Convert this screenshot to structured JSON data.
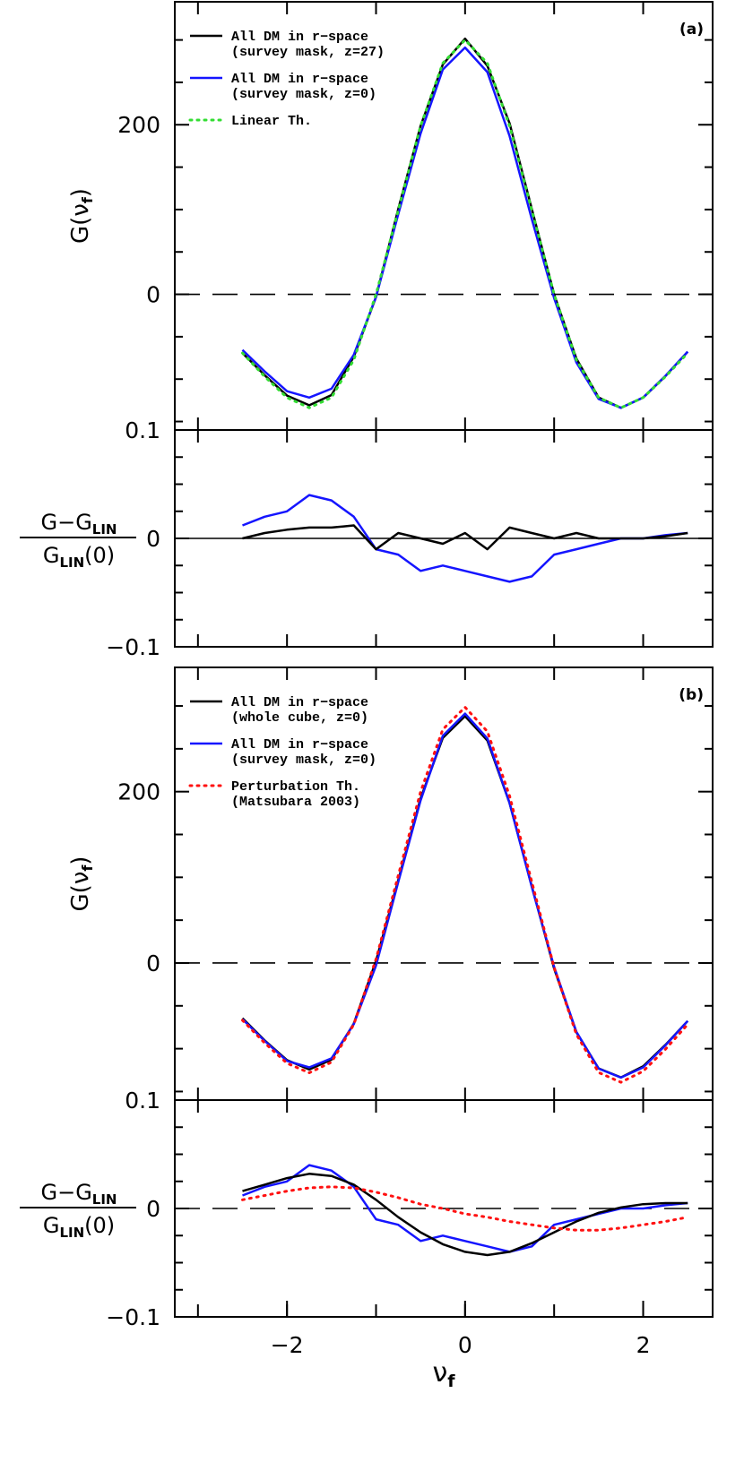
{
  "chart_data": [
    {
      "type": "line",
      "annotation": "(a)",
      "ylabel": [
        "G(ν",
        "f",
        ")"
      ],
      "xlim": [
        -3.26,
        2.78
      ],
      "xticks_minor": [
        -3,
        -2,
        -1,
        0,
        1,
        2
      ],
      "ylim": [
        -160,
        345
      ],
      "yticks": [
        0,
        200
      ],
      "yticks_minor": [
        -150,
        -100,
        -50,
        50,
        100,
        150,
        250,
        300
      ],
      "reference_line": 0,
      "reference_style": "dashed",
      "legend": "upper left",
      "x": [
        -2.5,
        -2.25,
        -2.0,
        -1.75,
        -1.5,
        -1.25,
        -1.0,
        -0.75,
        -0.5,
        -0.25,
        0,
        0.25,
        0.5,
        0.75,
        1.0,
        1.25,
        1.5,
        1.75,
        2.0,
        2.25,
        2.5
      ],
      "series": [
        {
          "name": [
            "All DM in r−space",
            "(survey mask, z=27)"
          ],
          "color": "#000000",
          "style": "solid",
          "values": [
            -69.2,
            -95.5,
            -119.4,
            -130.8,
            -118.8,
            -73.7,
            -3,
            100.6,
            198.6,
            271.1,
            301.5,
            269.6,
            201.6,
            100.6,
            0,
            -75.8,
            -121.8,
            -133.8,
            -121.8,
            -96.4,
            -67.7
          ]
        },
        {
          "name": [
            "All DM in r−space",
            "(survey mask, z=0)"
          ],
          "color": "#1515ff",
          "style": "solid",
          "values": [
            -65.6,
            -91.0,
            -114.3,
            -121.8,
            -111.3,
            -71.3,
            -3,
            94.6,
            189.6,
            265.1,
            291,
            262.1,
            186.6,
            88.6,
            -4.5,
            -80.3,
            -123.3,
            -133.8,
            -121.8,
            -96.1,
            -67.7
          ]
        },
        {
          "name": [
            "Linear Th."
          ],
          "color": "#33dd33",
          "style": "dotted",
          "values": [
            -69.2,
            -97.0,
            -121.8,
            -133.8,
            -121.8,
            -77.3,
            0,
            99.1,
            198.6,
            272.6,
            300,
            272.6,
            198.6,
            99.1,
            0,
            -77.3,
            -121.8,
            -133.8,
            -121.8,
            -97.0,
            -69.2
          ]
        }
      ]
    },
    {
      "type": "line",
      "ylabel_numerator": [
        "G−G",
        "LIN"
      ],
      "ylabel_denominator": [
        "G",
        "LIN",
        "(0)"
      ],
      "xlim": [
        -3.26,
        2.78
      ],
      "xticks_minor": [
        -3,
        -2,
        -1,
        0,
        1,
        2
      ],
      "ylim": [
        -0.1,
        0.1
      ],
      "yticks": [
        {
          "value": -0.1,
          "label": "−0.1"
        },
        0,
        0.1
      ],
      "yticks_minor": [
        -0.075,
        -0.05,
        -0.025,
        0.025,
        0.05,
        0.075
      ],
      "reference_line": 0,
      "reference_style": "solid",
      "x": [
        -2.5,
        -2.25,
        -2.0,
        -1.75,
        -1.5,
        -1.25,
        -1.0,
        -0.75,
        -0.5,
        -0.25,
        0,
        0.25,
        0.5,
        0.75,
        1.0,
        1.25,
        1.5,
        1.75,
        2.0,
        2.25,
        2.5
      ],
      "series": [
        {
          "color": "#1515ff",
          "style": "solid",
          "values": [
            0.012,
            0.02,
            0.025,
            0.04,
            0.035,
            0.02,
            -0.01,
            -0.015,
            -0.03,
            -0.025,
            -0.03,
            -0.035,
            -0.04,
            -0.035,
            -0.015,
            -0.01,
            -0.005,
            0.0,
            0.0,
            0.003,
            0.005
          ]
        },
        {
          "color": "#000000",
          "style": "solid",
          "values": [
            0,
            0.005,
            0.008,
            0.01,
            0.01,
            0.012,
            -0.01,
            0.005,
            0.0,
            -0.005,
            0.005,
            -0.01,
            0.01,
            0.005,
            0,
            0.005,
            0.0,
            0.0,
            0.0,
            0.002,
            0.005
          ]
        }
      ]
    },
    {
      "type": "line",
      "annotation": "(b)",
      "ylabel": [
        "G(ν",
        "f",
        ")"
      ],
      "xlim": [
        -3.26,
        2.78
      ],
      "xticks_minor": [
        -3,
        -2,
        -1,
        0,
        1,
        2
      ],
      "ylim": [
        -160,
        345
      ],
      "yticks": [
        0,
        200
      ],
      "yticks_minor": [
        -150,
        -100,
        -50,
        50,
        100,
        150,
        250,
        300
      ],
      "reference_line": 0,
      "reference_style": "dashed",
      "legend": "upper left",
      "x": [
        -2.5,
        -2.25,
        -2.0,
        -1.75,
        -1.5,
        -1.25,
        -1.0,
        -0.75,
        -0.5,
        -0.25,
        0,
        0.25,
        0.5,
        0.75,
        1.0,
        1.25,
        1.5,
        1.75,
        2.0,
        2.25,
        2.5
      ],
      "series": [
        {
          "name": [
            "All DM in r−space",
            "(whole cube, z=0)"
          ],
          "color": "#000000",
          "style": "solid",
          "values": [
            -64.4,
            -90.4,
            -113.4,
            -124.2,
            -112.8,
            -70.7,
            2.4,
            96.7,
            192.0,
            262.7,
            288,
            259.7,
            186.6,
            89.5,
            -6.6,
            -80.9,
            -123.0,
            -133.5,
            -120.6,
            -95.5,
            -67.7
          ]
        },
        {
          "name": [
            "All DM in r−space",
            "(survey mask, z=0)"
          ],
          "color": "#1515ff",
          "style": "solid",
          "values": [
            -65.6,
            -91.0,
            -114.3,
            -121.8,
            -111.3,
            -71.3,
            -3,
            94.6,
            189.6,
            265.1,
            291,
            262.1,
            186.6,
            88.6,
            -4.5,
            -80.3,
            -123.3,
            -133.8,
            -121.8,
            -96.1,
            -67.7
          ]
        },
        {
          "name": [
            "Perturbation Th.",
            "(Matsubara 2003)"
          ],
          "color": "#ff1111",
          "style": "dotted",
          "values": [
            -66.8,
            -93.4,
            -117.0,
            -128.1,
            -115.8,
            -71.6,
            4.5,
            102.1,
            199.8,
            272.6,
            298.5,
            270.2,
            195.0,
            94.6,
            -5.4,
            -83.3,
            -127.8,
            -139.2,
            -126.3,
            -100.6,
            -71.6
          ]
        }
      ]
    },
    {
      "type": "line",
      "ylabel_numerator": [
        "G−G",
        "LIN"
      ],
      "ylabel_denominator": [
        "G",
        "LIN",
        "(0)"
      ],
      "xlabel": [
        "ν",
        "f"
      ],
      "xlim": [
        -3.26,
        2.78
      ],
      "xticks": [
        {
          "value": -2,
          "label": "−2"
        },
        0,
        2
      ],
      "xticks_minor": [
        -3,
        -2,
        -1,
        0,
        1,
        2
      ],
      "ylim": [
        -0.1,
        0.1
      ],
      "yticks": [
        {
          "value": -0.1,
          "label": "−0.1"
        },
        0,
        0.1
      ],
      "yticks_minor": [
        -0.075,
        -0.05,
        -0.025,
        0.025,
        0.05,
        0.075
      ],
      "reference_line": 0,
      "reference_style": "dashed",
      "x": [
        -2.5,
        -2.25,
        -2.0,
        -1.75,
        -1.5,
        -1.25,
        -1.0,
        -0.75,
        -0.5,
        -0.25,
        0,
        0.25,
        0.5,
        0.75,
        1.0,
        1.25,
        1.5,
        1.75,
        2.0,
        2.25,
        2.5
      ],
      "series": [
        {
          "color": "#1515ff",
          "style": "solid",
          "values": [
            0.012,
            0.02,
            0.025,
            0.04,
            0.035,
            0.02,
            -0.01,
            -0.015,
            -0.03,
            -0.025,
            -0.03,
            -0.035,
            -0.04,
            -0.035,
            -0.015,
            -0.01,
            -0.005,
            0.0,
            0.0,
            0.003,
            0.005
          ]
        },
        {
          "color": "#000000",
          "style": "solid",
          "values": [
            0.016,
            0.022,
            0.028,
            0.032,
            0.03,
            0.022,
            0.008,
            -0.008,
            -0.022,
            -0.033,
            -0.04,
            -0.043,
            -0.04,
            -0.032,
            -0.022,
            -0.012,
            -0.004,
            0.001,
            0.004,
            0.005,
            0.005
          ]
        },
        {
          "color": "#ff1111",
          "style": "dotted",
          "values": [
            0.008,
            0.012,
            0.016,
            0.019,
            0.02,
            0.019,
            0.015,
            0.01,
            0.004,
            0.0,
            -0.005,
            -0.008,
            -0.012,
            -0.015,
            -0.018,
            -0.02,
            -0.02,
            -0.018,
            -0.015,
            -0.012,
            -0.008
          ]
        }
      ]
    }
  ]
}
